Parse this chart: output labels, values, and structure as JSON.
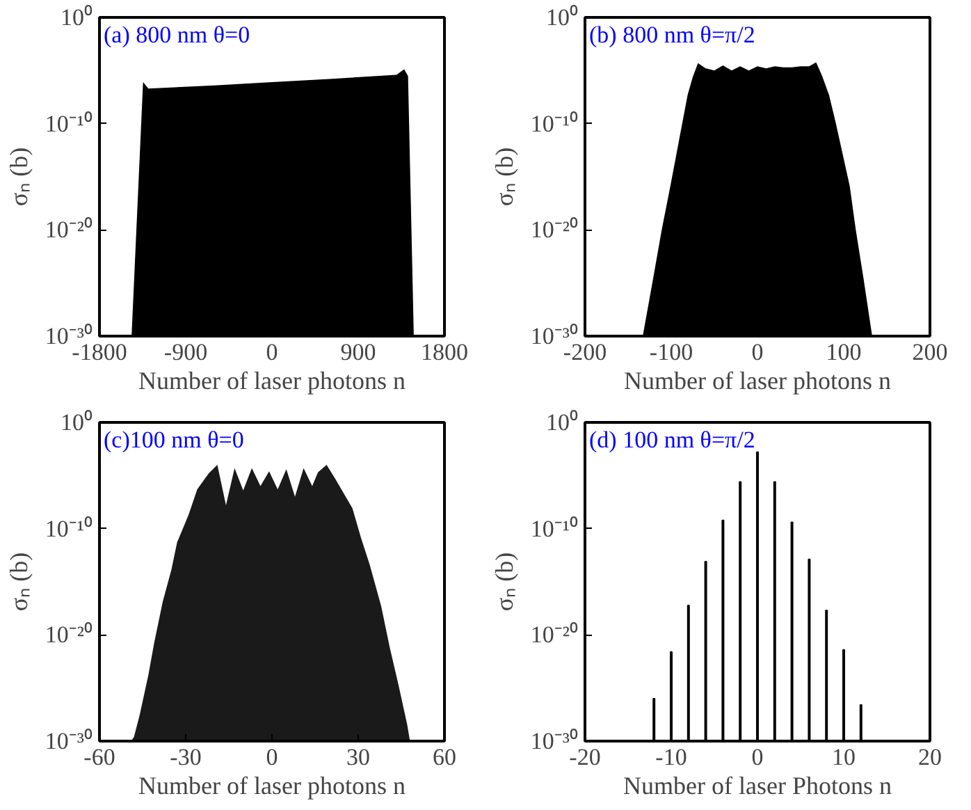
{
  "chart_data": [
    {
      "type": "area",
      "annotations": [
        "(a) 800 nm θ=0"
      ],
      "xlabel": "Number of laser photons n",
      "ylabel": "σₙ (b)",
      "log": "y",
      "color": "#000000",
      "x": [
        -1465,
        -1345,
        -1290,
        -600,
        0,
        600,
        1300,
        1380,
        1420,
        1480
      ],
      "values": [
        1e-30,
        8e-07,
        2e-07,
        4e-07,
        8e-07,
        1.6e-06,
        4e-06,
        1.3e-05,
        3e-06,
        1e-30
      ],
      "xlim": [
        -1800,
        1800
      ],
      "xticks": [
        -1800,
        -900,
        0,
        900,
        1800
      ],
      "ylim": [
        1e-30,
        1
      ],
      "yticks": [
        {
          "value": 1e-30,
          "label": "10⁻³⁰"
        },
        {
          "value": 1e-20,
          "label": "10⁻²⁰"
        },
        {
          "value": 1e-10,
          "label": "10⁻¹⁰"
        },
        {
          "value": 1,
          "label": "10⁰"
        }
      ]
    },
    {
      "type": "area",
      "annotations": [
        "(b) 800 nm θ=π/2"
      ],
      "xlabel": "Number of laser photons n",
      "ylabel": "σₙ (b)",
      "log": "y",
      "color": "#000000",
      "x": [
        -133,
        -121,
        -111,
        -101,
        -91,
        -81,
        -75,
        -69,
        -60,
        -50,
        -40,
        -30,
        -20,
        -10,
        0,
        10,
        20,
        30,
        40,
        50,
        60,
        68,
        75,
        83,
        91,
        107,
        114,
        123,
        133
      ],
      "values": [
        1e-30,
        2.5e-25,
        1e-20,
        1.3e-16,
        2.5e-12,
        5e-08,
        2.5e-06,
        5e-05,
        1.6e-05,
        1e-05,
        3e-05,
        1e-05,
        2.5e-05,
        1e-05,
        2.5e-05,
        1.6e-05,
        2.5e-05,
        2e-05,
        2e-05,
        2.5e-05,
        2.5e-05,
        6e-05,
        3e-06,
        5e-08,
        1e-10,
        1.3e-16,
        1e-20,
        2.5e-25,
        1e-30
      ],
      "xlim": [
        -200,
        200
      ],
      "xticks": [
        -200,
        -100,
        0,
        100,
        200
      ],
      "ylim": [
        1e-30,
        1
      ],
      "yticks": [
        {
          "value": 1e-30,
          "label": "10⁻³⁰"
        },
        {
          "value": 1e-20,
          "label": "10⁻²⁰"
        },
        {
          "value": 1e-10,
          "label": "10⁻¹⁰"
        },
        {
          "value": 1,
          "label": "10⁰"
        }
      ]
    },
    {
      "type": "area",
      "annotations": [
        "(c)100 nm θ=0"
      ],
      "xlabel": "Number of laser photons n",
      "ylabel": "σₙ (b)",
      "log": "y",
      "color": "#1a1a1a",
      "x": [
        -49,
        -48,
        -46,
        -43,
        -41,
        -38,
        -35,
        -33,
        -29,
        -26,
        -22,
        -19,
        -16,
        -13,
        -10,
        -7,
        -4,
        -1,
        2,
        5,
        8,
        11,
        14,
        16,
        19,
        22,
        28,
        31,
        34,
        38,
        41,
        44,
        47,
        48
      ],
      "values": [
        1e-30,
        2.5e-30,
        3e-28,
        1.6e-24,
        1.6e-21,
        1.3e-17,
        1.3e-14,
        5e-12,
        2e-09,
        5e-07,
        1.6e-05,
        0.0001,
        1.6e-08,
        5e-05,
        4e-07,
        5e-05,
        1e-06,
        2.5e-05,
        5e-07,
        4e-05,
        1e-07,
        5e-05,
        1e-06,
        2e-05,
        0.0001,
        5e-06,
        8e-09,
        1.3e-11,
        4e-14,
        5e-18,
        6e-22,
        2e-25,
        4e-29,
        1e-30
      ],
      "xlim": [
        -60,
        60
      ],
      "xticks": [
        -60,
        -30,
        0,
        30,
        60
      ],
      "ylim": [
        1e-30,
        1
      ],
      "yticks": [
        {
          "value": 1e-30,
          "label": "10⁻³⁰"
        },
        {
          "value": 1e-20,
          "label": "10⁻²⁰"
        },
        {
          "value": 1e-10,
          "label": "10⁻¹⁰"
        },
        {
          "value": 1,
          "label": "10⁰"
        }
      ]
    },
    {
      "type": "bar",
      "annotations": [
        "(d) 100 nm θ=π/2"
      ],
      "xlabel": "Number of laser Photons n",
      "ylabel": "σₙ (b)",
      "log": "y",
      "color": "#000000",
      "x": [
        -12,
        -10,
        -8,
        -6,
        -4,
        -2,
        0,
        2,
        4,
        6,
        8,
        10,
        12
      ],
      "values": [
        1e-26,
        2.5e-22,
        6e-18,
        8e-14,
        6e-10,
        2.5e-06,
        0.0016,
        2.5e-06,
        4e-10,
        1.3e-13,
        2e-18,
        4e-22,
        2.5e-27
      ],
      "xlim": [
        -20,
        20
      ],
      "xticks": [
        -20,
        -10,
        0,
        10,
        20
      ],
      "ylim": [
        1e-30,
        1
      ],
      "yticks": [
        {
          "value": 1e-30,
          "label": "10⁻³⁰"
        },
        {
          "value": 1e-20,
          "label": "10⁻²⁰"
        },
        {
          "value": 1e-10,
          "label": "10⁻¹⁰"
        },
        {
          "value": 1,
          "label": "10⁰"
        }
      ]
    }
  ]
}
